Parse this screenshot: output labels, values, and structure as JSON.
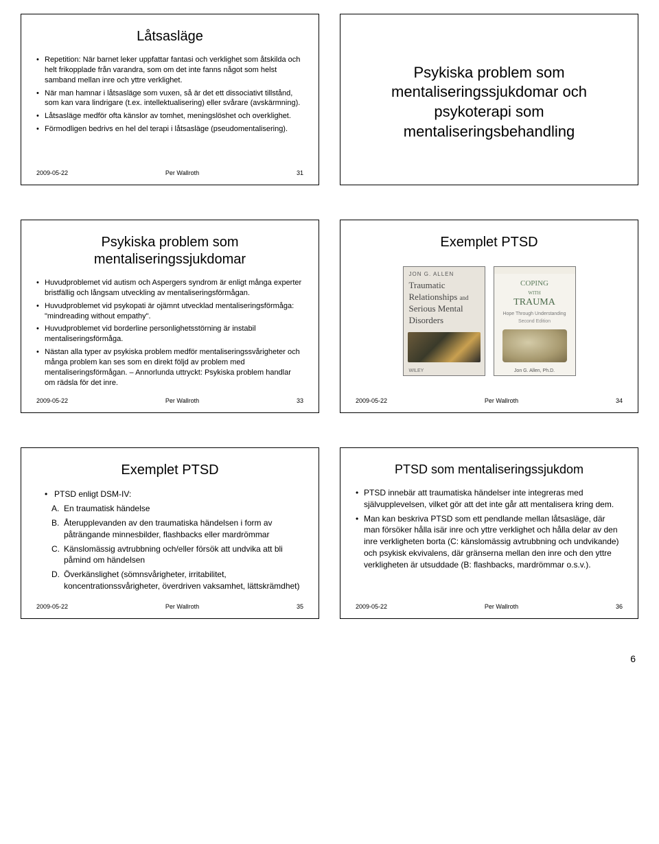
{
  "pageNumber": "6",
  "footer": {
    "date": "2009-05-22",
    "author": "Per Wallroth"
  },
  "slides": {
    "s31": {
      "title": "Låtsasläge",
      "bullets": [
        "Repetition: När barnet leker uppfattar fantasi och verklighet som åtskilda och helt frikopplade från varandra, som om det inte fanns något som helst samband mellan inre och yttre verklighet.",
        "När man hamnar i låtsasläge som vuxen, så är det ett dissociativt tillstånd, som kan vara lindrigare (t.ex. intellektualisering) eller svårare (avskärmning).",
        "Låtsasläge medför ofta känslor av tomhet, meningslöshet och overklighet.",
        "Förmodligen bedrivs en hel del terapi i låtsasläge (pseudomentalisering)."
      ],
      "num": "31"
    },
    "s32": {
      "title": "Psykiska problem som mentaliseringssjukdomar och psykoterapi som mentaliseringsbehandling"
    },
    "s33": {
      "title": "Psykiska problem som mentaliseringssjukdomar",
      "bullets": [
        "Huvudproblemet vid autism och Aspergers syndrom är enligt många experter bristfällig och långsam utveckling av mentaliseringsförmågan.",
        "Huvudproblemet vid psykopati är ojämnt utvecklad mentaliseringsförmåga: \"mindreading without empathy\".",
        "Huvudproblemet vid borderline personlighetsstörning är instabil mentaliseringsförmåga.",
        "Nästan alla typer av psykiska problem medför mentaliseringssvårigheter och många problem kan ses som en direkt följd av problem med mentaliseringsförmågan. – Annorlunda uttryckt: Psykiska problem handlar om rädsla för det inre."
      ],
      "num": "33"
    },
    "s34": {
      "title": "Exemplet PTSD",
      "book1": {
        "author": "JON G. ALLEN",
        "title_l1": "Traumatic",
        "title_l2": "Relationships",
        "title_and": "and",
        "title_l3": "Serious Mental",
        "title_l4": "Disorders",
        "publisher": "WILEY"
      },
      "book2": {
        "title_pre": "COPING",
        "title_with": "WITH",
        "title_main": "TRAUMA",
        "subtitle": "Hope Through Understanding",
        "edition": "Second Edition",
        "author": "Jon G. Allen, Ph.D."
      },
      "num": "34"
    },
    "s35": {
      "title": "Exemplet PTSD",
      "lead": "PTSD enligt DSM-IV:",
      "items": [
        {
          "letter": "A.",
          "text": "En traumatisk händelse"
        },
        {
          "letter": "B.",
          "text": "Återupplevanden av den traumatiska händelsen i form av påträngande minnesbilder, flashbacks eller mardrömmar"
        },
        {
          "letter": "C.",
          "text": "Känslomässig avtrubbning och/eller försök att undvika att bli påmind om händelsen"
        },
        {
          "letter": "D.",
          "text": "Överkänslighet (sömnsvårigheter, irritabilitet, koncentrationssvårigheter, överdriven vaksamhet, lättskrämdhet)"
        }
      ],
      "num": "35"
    },
    "s36": {
      "title": "PTSD som mentaliseringssjukdom",
      "bullets": [
        "PTSD innebär att traumatiska händelser inte integreras med självupplevelsen, vilket gör att det inte går att mentalisera kring dem.",
        "Man kan beskriva PTSD som ett pendlande mellan låtsasläge, där man försöker hålla isär inre och yttre verklighet och hålla delar av den inre verkligheten borta (C: känslomässig avtrubbning och undvikande) och psykisk ekvivalens, där gränserna mellan den inre och den yttre verkligheten är utsuddade (B: flashbacks, mardrömmar o.s.v.)."
      ],
      "num": "36"
    }
  }
}
